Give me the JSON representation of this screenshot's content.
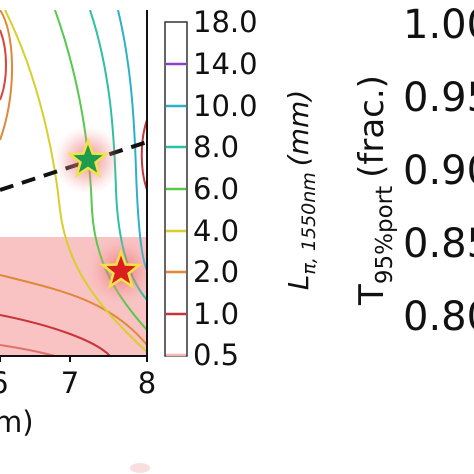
{
  "chart_data": [
    {
      "type": "contour",
      "xticks": [
        "6",
        "7",
        "8"
      ],
      "xlabel_fragment": "m)",
      "xlim": [
        5.9,
        8
      ],
      "levels": [
        {
          "value": 0.5,
          "label": "0.5",
          "color": "#fbe4e4"
        },
        {
          "value": 1.0,
          "label": "1.0",
          "color": "#c8343a"
        },
        {
          "value": 2.0,
          "label": "2.0",
          "color": "#e0873a"
        },
        {
          "value": 4.0,
          "label": "4.0",
          "color": "#d8cf2e"
        },
        {
          "value": 6.0,
          "label": "6.0",
          "color": "#57c84d"
        },
        {
          "value": 8.0,
          "label": "8.0",
          "color": "#2fbfa4"
        },
        {
          "value": 10.0,
          "label": "10.0",
          "color": "#2fb0c9"
        },
        {
          "value": 14.0,
          "label": "14.0",
          "color": "#8a44c6"
        },
        {
          "value": 18.0,
          "label": "18.0",
          "color": "#ffffff"
        }
      ],
      "colorbar_label": "L",
      "colorbar_label_sub": "π, 1550nm",
      "colorbar_label_unit": "(mm)",
      "markers": [
        {
          "name": "green-star",
          "x": 7.2,
          "y": 8.0,
          "color": "#1e9b4c"
        },
        {
          "name": "red-star",
          "x": 7.65,
          "y": 2.3,
          "color": "#d91f1f"
        }
      ]
    },
    {
      "type": "axis-fragment",
      "yticks": [
        "1.00",
        "0.95",
        "0.90",
        "0.85",
        "0.80"
      ],
      "ylabel_main": "T",
      "ylabel_sub": "95%port",
      "ylabel_unit": "(frac.)"
    }
  ]
}
